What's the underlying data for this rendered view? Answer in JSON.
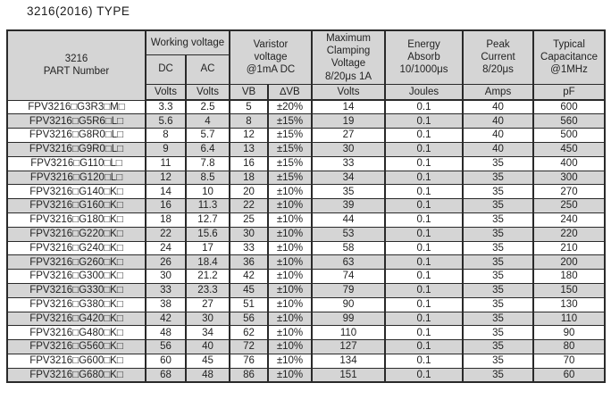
{
  "page": {
    "title": "3216(2016) TYPE"
  },
  "table": {
    "header": {
      "part_number": "3216\nPART Number",
      "working_voltage": "Working voltage",
      "dc": "DC",
      "ac": "AC",
      "varistor_voltage": "Varistor\nvoltage\n@1mA DC",
      "max_clamping_voltage": "Maximum\nClamping\nVoltage\n8/20μs 1A",
      "energy_absorb": "Energy\nAbsorb\n10/1000μs",
      "peak_current": "Peak\nCurrent\n8/20μs",
      "typical_capacitance": "Typical\nCapacitance\n@1MHz",
      "units": {
        "dc": "Volts",
        "ac": "Volts",
        "vb": "VB",
        "delta_vb": "∆VB",
        "clamping": "Volts",
        "energy": "Joules",
        "peak": "Amps",
        "capacitance": "pF"
      }
    },
    "columns": [
      "part-number-cell",
      "dc-volts-cell",
      "ac-volts-cell",
      "vb-cell",
      "delta-vb-cell",
      "clamping-volts-cell",
      "energy-joules-cell",
      "peak-amps-cell",
      "capacitance-pf-cell"
    ],
    "rows": [
      [
        "FPV3216□G3R3□M□",
        "3.3",
        "2.5",
        "5",
        "±20%",
        "14",
        "0.1",
        "40",
        "600"
      ],
      [
        "FPV3216□G5R6□L□",
        "5.6",
        "4",
        "8",
        "±15%",
        "19",
        "0.1",
        "40",
        "560"
      ],
      [
        "FPV3216□G8R0□L□",
        "8",
        "5.7",
        "12",
        "±15%",
        "27",
        "0.1",
        "40",
        "500"
      ],
      [
        "FPV3216□G9R0□L□",
        "9",
        "6.4",
        "13",
        "±15%",
        "30",
        "0.1",
        "40",
        "450"
      ],
      [
        "FPV3216□G110□L□",
        "11",
        "7.8",
        "16",
        "±15%",
        "33",
        "0.1",
        "35",
        "400"
      ],
      [
        "FPV3216□G120□L□",
        "12",
        "8.5",
        "18",
        "±15%",
        "34",
        "0.1",
        "35",
        "300"
      ],
      [
        "FPV3216□G140□K□",
        "14",
        "10",
        "20",
        "±10%",
        "35",
        "0.1",
        "35",
        "270"
      ],
      [
        "FPV3216□G160□K□",
        "16",
        "11.3",
        "22",
        "±10%",
        "39",
        "0.1",
        "35",
        "250"
      ],
      [
        "FPV3216□G180□K□",
        "18",
        "12.7",
        "25",
        "±10%",
        "44",
        "0.1",
        "35",
        "240"
      ],
      [
        "FPV3216□G220□K□",
        "22",
        "15.6",
        "30",
        "±10%",
        "53",
        "0.1",
        "35",
        "220"
      ],
      [
        "FPV3216□G240□K□",
        "24",
        "17",
        "33",
        "±10%",
        "58",
        "0.1",
        "35",
        "210"
      ],
      [
        "FPV3216□G260□K□",
        "26",
        "18.4",
        "36",
        "±10%",
        "63",
        "0.1",
        "35",
        "200"
      ],
      [
        "FPV3216□G300□K□",
        "30",
        "21.2",
        "42",
        "±10%",
        "74",
        "0.1",
        "35",
        "180"
      ],
      [
        "FPV3216□G330□K□",
        "33",
        "23.3",
        "45",
        "±10%",
        "79",
        "0.1",
        "35",
        "150"
      ],
      [
        "FPV3216□G380□K□",
        "38",
        "27",
        "51",
        "±10%",
        "90",
        "0.1",
        "35",
        "130"
      ],
      [
        "FPV3216□G420□K□",
        "42",
        "30",
        "56",
        "±10%",
        "99",
        "0.1",
        "35",
        "110"
      ],
      [
        "FPV3216□G480□K□",
        "48",
        "34",
        "62",
        "±10%",
        "110",
        "0.1",
        "35",
        "90"
      ],
      [
        "FPV3216□G560□K□",
        "56",
        "40",
        "72",
        "±10%",
        "127",
        "0.1",
        "35",
        "80"
      ],
      [
        "FPV3216□G600□K□",
        "60",
        "45",
        "76",
        "±10%",
        "134",
        "0.1",
        "35",
        "70"
      ],
      [
        "FPV3216□G680□K□",
        "68",
        "48",
        "86",
        "±10%",
        "151",
        "0.1",
        "35",
        "60"
      ]
    ],
    "colors": {
      "header_bg": "#d5d5d5",
      "stripe_bg": "#d5d5d5",
      "row_bg": "#ffffff",
      "border": "#2a2a2a",
      "text": "#232323"
    }
  }
}
